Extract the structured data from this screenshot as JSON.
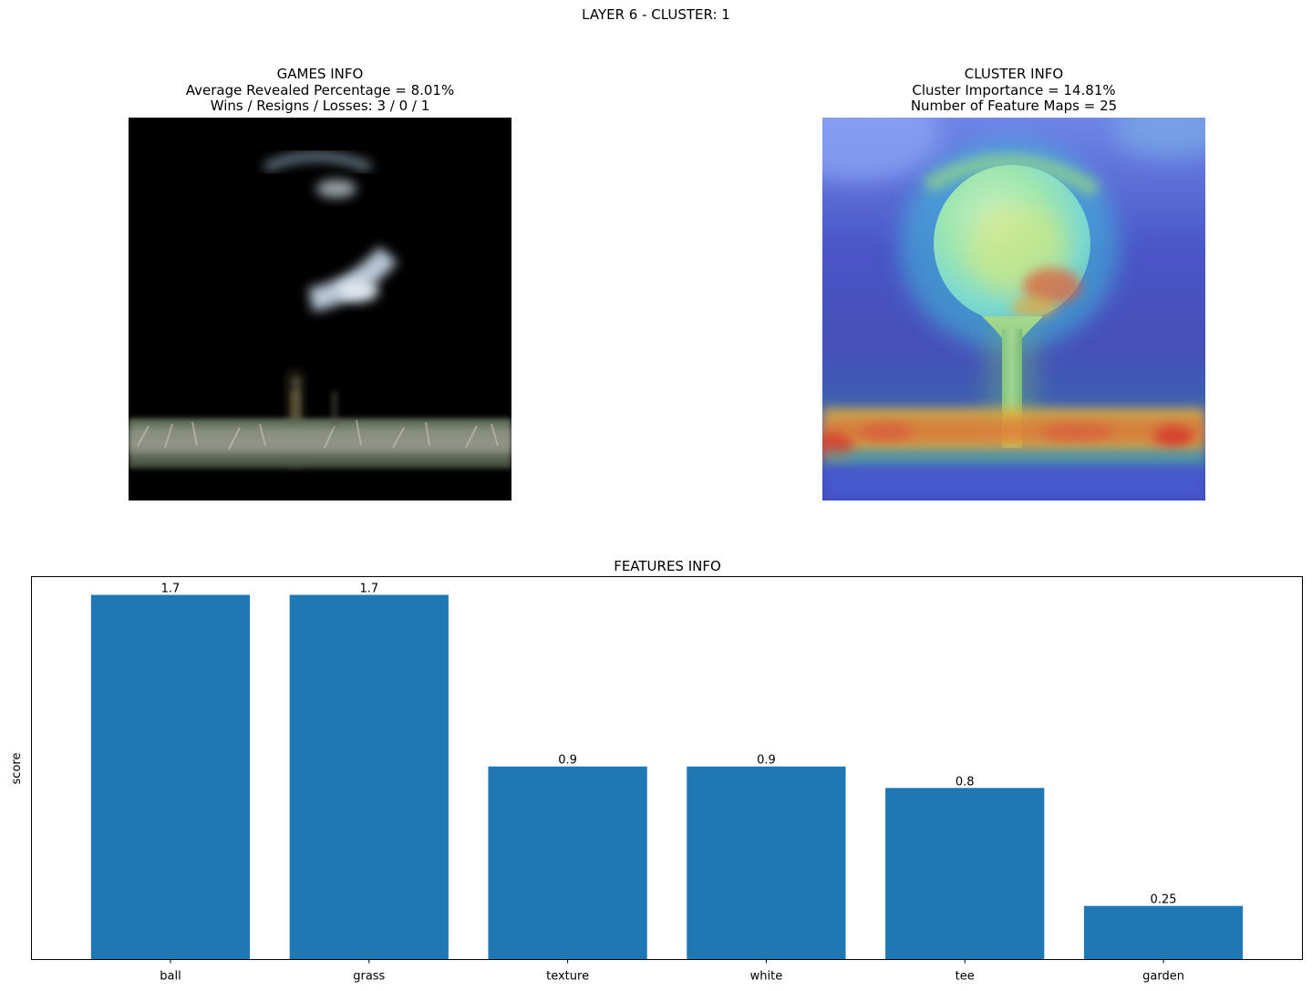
{
  "suptitle": "LAYER 6 - CLUSTER: 1",
  "left_panel": {
    "title_line1": "GAMES INFO",
    "title_line2": "Average Revealed Percentage = 8.01%",
    "title_line3": "Wins / Resigns / Losses: 3 / 0 / 1"
  },
  "right_panel": {
    "title_line1": "CLUSTER INFO",
    "title_line2": "Cluster Importance = 14.81%",
    "title_line3": "Number of Feature Maps = 25"
  },
  "chart_data": {
    "type": "bar",
    "title": "FEATURES INFO",
    "xlabel": "",
    "ylabel": "score",
    "categories": [
      "ball",
      "grass",
      "texture",
      "white",
      "tee",
      "garden"
    ],
    "values": [
      1.7,
      1.7,
      0.9,
      0.9,
      0.8,
      0.25
    ],
    "value_labels": [
      "1.7",
      "1.7",
      "0.9",
      "0.9",
      "0.8",
      "0.25"
    ],
    "ylim": [
      0,
      1.785
    ],
    "grid": false,
    "bar_color": "#1f77b4"
  }
}
